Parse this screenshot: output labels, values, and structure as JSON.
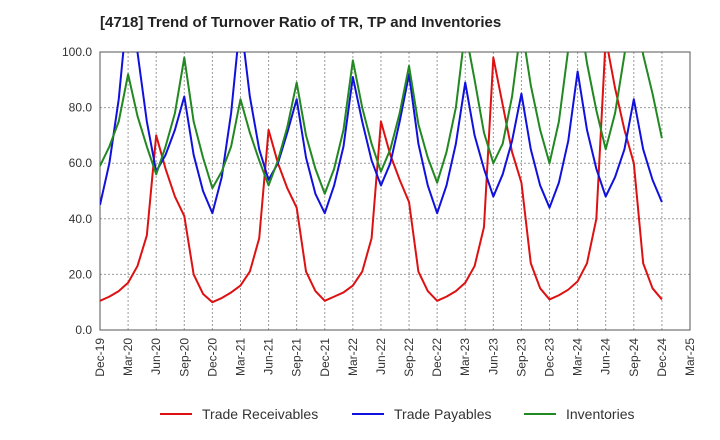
{
  "chart_data": {
    "type": "line",
    "title": "[4718]  Trend of Turnover Ratio of TR, TP and Inventories",
    "xlabel": "",
    "ylabel": "",
    "ylim": [
      0,
      100
    ],
    "y_ticks": [
      "0.0",
      "20.0",
      "40.0",
      "60.0",
      "80.0",
      "100.0"
    ],
    "x_ticks": [
      "Dec-19",
      "Mar-20",
      "Jun-20",
      "Sep-20",
      "Dec-20",
      "Mar-21",
      "Jun-21",
      "Sep-21",
      "Dec-21",
      "Mar-22",
      "Jun-22",
      "Sep-22",
      "Dec-22",
      "Mar-23",
      "Jun-23",
      "Sep-23",
      "Dec-23",
      "Mar-24",
      "Jun-24",
      "Sep-24",
      "Dec-24",
      "Mar-25"
    ],
    "x_start": "Dec-19",
    "x_end": "Mar-25",
    "grid": true,
    "legend_position": "bottom",
    "series": [
      {
        "name": "Trade Receivables",
        "color": "#dd1111",
        "x": [
          "Dec-19",
          "Jan-20",
          "Feb-20",
          "Mar-20",
          "Apr-20",
          "May-20",
          "Jun-20",
          "Jul-20",
          "Aug-20",
          "Sep-20",
          "Oct-20",
          "Nov-20",
          "Dec-20",
          "Jan-21",
          "Feb-21",
          "Mar-21",
          "Apr-21",
          "May-21",
          "Jun-21",
          "Jul-21",
          "Aug-21",
          "Sep-21",
          "Oct-21",
          "Nov-21",
          "Dec-21",
          "Jan-22",
          "Feb-22",
          "Mar-22",
          "Apr-22",
          "May-22",
          "Jun-22",
          "Jul-22",
          "Aug-22",
          "Sep-22",
          "Oct-22",
          "Nov-22",
          "Dec-22",
          "Jan-23",
          "Feb-23",
          "Mar-23",
          "Apr-23",
          "May-23",
          "Jun-23",
          "Jul-23",
          "Aug-23",
          "Sep-23",
          "Oct-23",
          "Nov-23",
          "Dec-23",
          "Jan-24",
          "Feb-24",
          "Mar-24",
          "Apr-24",
          "May-24",
          "Jun-24",
          "Jul-24",
          "Aug-24",
          "Sep-24",
          "Oct-24",
          "Nov-24",
          "Dec-24"
        ],
        "values": [
          10.5,
          12,
          14,
          17,
          23,
          34,
          70,
          58,
          48,
          41,
          20,
          13,
          10,
          11.5,
          13.5,
          16,
          21,
          33,
          72,
          60,
          51,
          44,
          21,
          14,
          10.5,
          12,
          13.5,
          16,
          21,
          33,
          75,
          63,
          54,
          46,
          21,
          14,
          10.5,
          12,
          14,
          17,
          23,
          37,
          98,
          81,
          64,
          53,
          24,
          15,
          11,
          12.5,
          14.5,
          17.5,
          24,
          40,
          105,
          87,
          72,
          60,
          24,
          15,
          11
        ]
      },
      {
        "name": "Trade Payables",
        "color": "#1111dd",
        "x": [
          "Dec-19",
          "Jan-20",
          "Feb-20",
          "Mar-20",
          "Apr-20",
          "May-20",
          "Jun-20",
          "Jul-20",
          "Aug-20",
          "Sep-20",
          "Oct-20",
          "Nov-20",
          "Dec-20",
          "Jan-21",
          "Feb-21",
          "Mar-21",
          "Apr-21",
          "May-21",
          "Jun-21",
          "Jul-21",
          "Aug-21",
          "Sep-21",
          "Oct-21",
          "Nov-21",
          "Dec-21",
          "Jan-22",
          "Feb-22",
          "Mar-22",
          "Apr-22",
          "May-22",
          "Jun-22",
          "Jul-22",
          "Aug-22",
          "Sep-22",
          "Oct-22",
          "Nov-22",
          "Dec-22",
          "Jan-23",
          "Feb-23",
          "Mar-23",
          "Apr-23",
          "May-23",
          "Jun-23",
          "Jul-23",
          "Aug-23",
          "Sep-23",
          "Oct-23",
          "Nov-23",
          "Dec-23",
          "Jan-24",
          "Feb-24",
          "Mar-24",
          "Apr-24",
          "May-24",
          "Jun-24",
          "Jul-24",
          "Aug-24",
          "Sep-24",
          "Oct-24",
          "Nov-24",
          "Dec-24"
        ],
        "values": [
          45,
          60,
          83,
          118,
          100,
          75,
          57,
          63,
          72,
          84,
          63,
          50,
          42,
          55,
          78,
          112,
          84,
          65,
          54,
          60,
          71,
          83,
          62,
          49,
          42,
          52,
          66,
          91,
          75,
          61,
          52,
          60,
          75,
          92,
          67,
          52,
          42,
          52,
          67,
          89,
          70,
          58,
          48,
          56,
          68,
          85,
          65,
          52,
          44,
          53,
          68,
          93,
          72,
          58,
          48,
          55,
          65,
          83,
          65,
          54,
          46
        ]
      },
      {
        "name": "Inventories",
        "color": "#228822",
        "x": [
          "Dec-19",
          "Jan-20",
          "Feb-20",
          "Mar-20",
          "Apr-20",
          "May-20",
          "Jun-20",
          "Jul-20",
          "Aug-20",
          "Sep-20",
          "Oct-20",
          "Nov-20",
          "Dec-20",
          "Jan-21",
          "Feb-21",
          "Mar-21",
          "Apr-21",
          "May-21",
          "Jun-21",
          "Jul-21",
          "Aug-21",
          "Sep-21",
          "Oct-21",
          "Nov-21",
          "Dec-21",
          "Jan-22",
          "Feb-22",
          "Mar-22",
          "Apr-22",
          "May-22",
          "Jun-22",
          "Jul-22",
          "Aug-22",
          "Sep-22",
          "Oct-22",
          "Nov-22",
          "Dec-22",
          "Jan-23",
          "Feb-23",
          "Mar-23",
          "Apr-23",
          "May-23",
          "Jun-23",
          "Jul-23",
          "Aug-23",
          "Sep-23",
          "Oct-23",
          "Nov-23",
          "Dec-23",
          "Jan-24",
          "Feb-24",
          "Mar-24",
          "Apr-24",
          "May-24",
          "Jun-24",
          "Jul-24",
          "Aug-24",
          "Sep-24",
          "Oct-24",
          "Nov-24",
          "Dec-24"
        ],
        "values": [
          59,
          66,
          75,
          92,
          77,
          66,
          56,
          66,
          78,
          98,
          75,
          62,
          51,
          57,
          66,
          83,
          71,
          61,
          52,
          61,
          73,
          89,
          70,
          58,
          49,
          58,
          72,
          97,
          80,
          67,
          57,
          65,
          78,
          95,
          74,
          62,
          53,
          64,
          80,
          108,
          90,
          71,
          60,
          67,
          84,
          110,
          88,
          72,
          60,
          75,
          101,
          118,
          96,
          79,
          65,
          78,
          99,
          121,
          99,
          85,
          69
        ]
      }
    ]
  }
}
